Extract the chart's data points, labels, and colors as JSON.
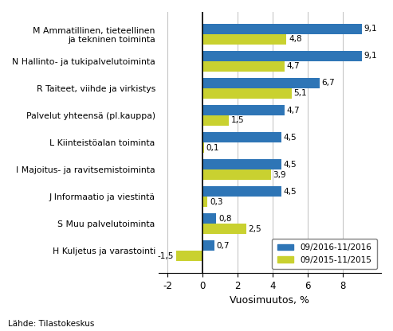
{
  "categories": [
    "M Ammatillinen, tieteellinen\nja tekninen toiminta",
    "N Hallinto- ja tukipalvelutoiminta",
    "R Taiteet, viihde ja virkistys",
    "Palvelut yhteensä (pl.kauppa)",
    "L Kiinteistöalan toiminta",
    "I Majoitus- ja ravitsemistoiminta",
    "J Informaatio ja viestintä",
    "S Muu palvelutoiminta",
    "H Kuljetus ja varastointi"
  ],
  "values_2016": [
    9.1,
    9.1,
    6.7,
    4.7,
    4.5,
    4.5,
    4.5,
    0.8,
    0.7
  ],
  "values_2015": [
    4.8,
    4.7,
    5.1,
    1.5,
    0.1,
    3.9,
    0.3,
    2.5,
    -1.5
  ],
  "color_2016": "#2E75B6",
  "color_2015": "#C9D130",
  "legend_2016": "09/2016-11/2016",
  "legend_2015": "09/2015-11/2015",
  "xlabel": "Vuosimuutos, %",
  "xlim": [
    -2.5,
    10.2
  ],
  "xticks": [
    -2,
    0,
    2,
    4,
    6,
    8
  ],
  "source": "Lähde: Tilastokeskus",
  "bar_height": 0.38
}
